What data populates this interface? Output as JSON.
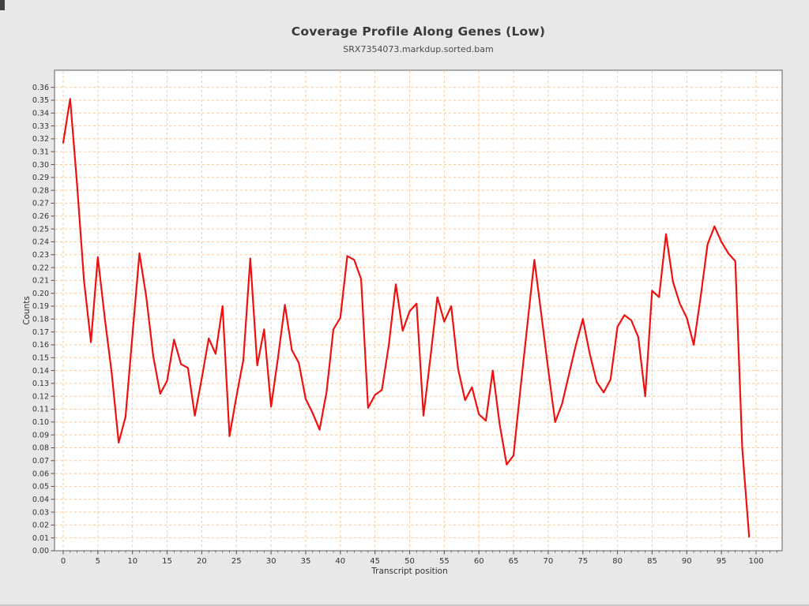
{
  "header": {
    "title": "Coverage Profile Along Genes (Low)",
    "subtitle": "SRX7354073.markdup.sorted.bam"
  },
  "colors": {
    "background": "#e8e8e8",
    "plot_background": "#ffffff",
    "grid": "#f5c99e",
    "plot_border": "#777777",
    "tick": "#555555",
    "tick_label": "#333333",
    "line": "#ee1111",
    "title": "#3a3a3a",
    "subtitle": "#4a4a4a"
  },
  "chart_data": {
    "type": "line",
    "title": "Coverage Profile Along Genes (Low)",
    "subtitle": "SRX7354073.markdup.sorted.bam",
    "xlabel": "Transcript position",
    "ylabel": "Counts",
    "xlim": [
      -1.2,
      104
    ],
    "ylim": [
      0,
      0.365
    ],
    "grid": true,
    "legend": "none",
    "x_ticks": [
      0,
      5,
      10,
      15,
      20,
      25,
      30,
      35,
      40,
      45,
      50,
      55,
      60,
      65,
      70,
      75,
      80,
      85,
      90,
      95,
      100
    ],
    "y_ticks": [
      0.0,
      0.01,
      0.02,
      0.03,
      0.04,
      0.05,
      0.06,
      0.07,
      0.08,
      0.09,
      0.1,
      0.11,
      0.12,
      0.13,
      0.14,
      0.15,
      0.16,
      0.17,
      0.18,
      0.19,
      0.2,
      0.21,
      0.22,
      0.23,
      0.24,
      0.25,
      0.26,
      0.27,
      0.28,
      0.29,
      0.3,
      0.31,
      0.32,
      0.33,
      0.34,
      0.35,
      0.36
    ],
    "series": [
      {
        "name": "SRX7354073.markdup.sorted.bam",
        "x_start": 0,
        "x_step": 1,
        "values": [
          0.317,
          0.351,
          0.285,
          0.21,
          0.162,
          0.228,
          0.181,
          0.138,
          0.084,
          0.104,
          0.168,
          0.231,
          0.197,
          0.151,
          0.122,
          0.132,
          0.164,
          0.145,
          0.142,
          0.105,
          0.134,
          0.165,
          0.153,
          0.19,
          0.089,
          0.12,
          0.148,
          0.227,
          0.144,
          0.172,
          0.112,
          0.15,
          0.191,
          0.156,
          0.146,
          0.118,
          0.107,
          0.094,
          0.123,
          0.172,
          0.181,
          0.229,
          0.226,
          0.211,
          0.111,
          0.121,
          0.125,
          0.16,
          0.207,
          0.171,
          0.186,
          0.192,
          0.105,
          0.15,
          0.197,
          0.178,
          0.19,
          0.141,
          0.117,
          0.127,
          0.106,
          0.101,
          0.14,
          0.098,
          0.067,
          0.074,
          0.126,
          0.176,
          0.226,
          0.184,
          0.141,
          0.1,
          0.114,
          0.137,
          0.16,
          0.18,
          0.153,
          0.131,
          0.123,
          0.133,
          0.174,
          0.183,
          0.179,
          0.166,
          0.12,
          0.202,
          0.197,
          0.246,
          0.209,
          0.192,
          0.181,
          0.16,
          0.197,
          0.238,
          0.252,
          0.24,
          0.231,
          0.225,
          0.08,
          0.011
        ]
      }
    ]
  }
}
